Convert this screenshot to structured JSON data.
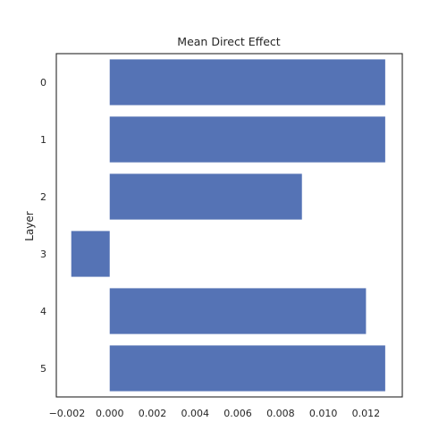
{
  "chart_data": {
    "type": "bar",
    "orientation": "horizontal",
    "title": "Mean Direct Effect",
    "xlabel": "",
    "ylabel": "Layer",
    "categories": [
      "0",
      "1",
      "2",
      "3",
      "4",
      "5"
    ],
    "values": [
      0.0129,
      0.0129,
      0.009,
      -0.0018,
      0.012,
      0.0129
    ],
    "xlim": [
      -0.0025,
      0.0137
    ],
    "xticks": [
      -0.002,
      0.0,
      0.002,
      0.004,
      0.006,
      0.008,
      0.01,
      0.012
    ],
    "xtick_labels": [
      "−0.002",
      "0.000",
      "0.002",
      "0.004",
      "0.006",
      "0.008",
      "0.010",
      "0.012"
    ],
    "bar_color": "#5573b5",
    "grid": false,
    "legend": "none"
  }
}
